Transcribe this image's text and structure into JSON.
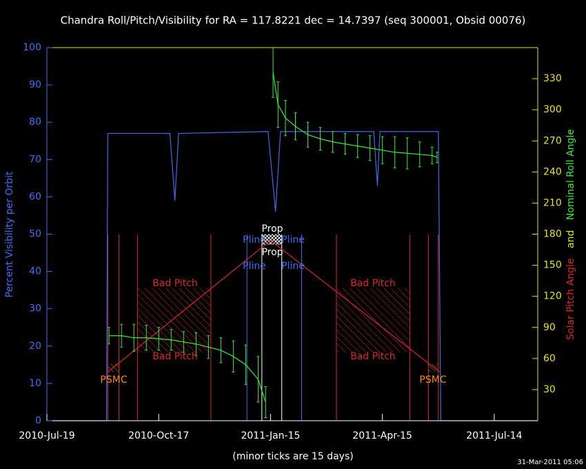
{
  "chart_data": {
    "type": "line",
    "title": "Chandra Roll/Pitch/Visibility for RA = 117.8221 dec = 14.7397 (seq 300001, Obsid 00076)",
    "xlabel": "(minor ticks are 15 days)",
    "ylabel": "Percent Visibility per Orbit",
    "y2label": [
      {
        "text": "Solar Pitch Angle",
        "color": "#e02424"
      },
      {
        "text": "and",
        "color": "#e6e600"
      },
      {
        "text": "Nominal Roll Angle",
        "color": "#33ee33"
      }
    ],
    "timestamp": "31-Mar-2011 05:06",
    "ycolor": "#3a6ff7",
    "y2color": "#e6e600",
    "xlim": [
      "2010-07-19",
      "2011-08-18"
    ],
    "xticks": [
      {
        "value": "2010-07-19",
        "label": "2010-Jul-19"
      },
      {
        "value": "2010-10-17",
        "label": "2010-Oct-17"
      },
      {
        "value": "2011-01-15",
        "label": "2011-Jan-15"
      },
      {
        "value": "2011-04-15",
        "label": "2011-Apr-15"
      },
      {
        "value": "2011-07-14",
        "label": "2011-Jul-14"
      }
    ],
    "ylim": [
      0,
      100
    ],
    "yticks": [
      0,
      10,
      20,
      30,
      40,
      50,
      60,
      70,
      80,
      90,
      100
    ],
    "y2lim": [
      0,
      360
    ],
    "y2ticks": [
      30,
      60,
      90,
      120,
      150,
      180,
      210,
      240,
      270,
      300,
      330
    ],
    "series": [
      {
        "color": "#3b6cf4",
        "x": [
          "2010-07-19",
          "2010-09-05",
          "2010-09-06",
          "2010-10-26",
          "2010-10-30",
          "2010-11-02",
          "2011-01-13",
          "2011-01-19",
          "2011-01-23",
          "2011-04-08",
          "2011-04-11",
          "2011-04-13",
          "2011-05-30",
          "2011-06-01",
          "2011-08-18"
        ],
        "values": [
          0,
          0,
          77,
          77,
          59,
          77,
          77.5,
          56,
          77.5,
          77.5,
          63,
          77.5,
          77.5,
          0,
          0
        ]
      },
      {
        "color": "#e02424",
        "axis": "y2",
        "x": [
          "2010-09-06",
          "2011-01-15",
          "2011-05-31"
        ],
        "values": [
          47,
          174,
          47
        ]
      },
      {
        "color": "#33ee33",
        "axis": "y2",
        "x": [
          "2010-09-07",
          "2010-09-17",
          "2010-09-27",
          "2010-10-07",
          "2010-10-17",
          "2010-10-27",
          "2010-11-06",
          "2010-11-16",
          "2010-11-26",
          "2010-12-06",
          "2010-12-16",
          "2010-12-26",
          "2011-01-05",
          "2011-01-11",
          "2011-01-14",
          "2011-01-17",
          "2011-01-21",
          "2011-01-27",
          "2011-02-04",
          "2011-02-14",
          "2011-02-24",
          "2011-03-06",
          "2011-03-16",
          "2011-03-26",
          "2011-04-05",
          "2011-04-15",
          "2011-04-25",
          "2011-05-05",
          "2011-05-15",
          "2011-05-25",
          "2011-05-29"
        ],
        "values": [
          82,
          82,
          80,
          80,
          79,
          78,
          76,
          74,
          71,
          68,
          62,
          54,
          40,
          18,
          null,
          336,
          305,
          292,
          284,
          276,
          272,
          269,
          267,
          265,
          263,
          261,
          259,
          258,
          257,
          256,
          254
        ],
        "errors": [
          8,
          11,
          13,
          12,
          11,
          10,
          10,
          11,
          11,
          12,
          15,
          19,
          22,
          15,
          null,
          24,
          22,
          17,
          13,
          12,
          11,
          10,
          10,
          11,
          12,
          13,
          15,
          15,
          12,
          8,
          5
        ]
      }
    ],
    "regions": [
      {
        "x": [
          "2010-09-30",
          "2010-11-28"
        ],
        "y2": [
          66,
          128
        ],
        "color": "#e02424"
      },
      {
        "x": [
          "2011-03-09",
          "2011-05-07"
        ],
        "y2": [
          66,
          128
        ],
        "color": "#e02424"
      },
      {
        "x": [
          "2010-09-06",
          "2010-09-15"
        ],
        "y2": [
          47,
          55
        ],
        "color": "#ff8800"
      },
      {
        "x": [
          "2011-05-22",
          "2011-05-30"
        ],
        "y2": [
          47,
          55
        ],
        "color": "#ff8800"
      },
      {
        "x": [
          "2011-01-08",
          "2011-01-24"
        ],
        "y2": [
          170,
          180
        ],
        "color": "#ffffff"
      }
    ],
    "events": [
      {
        "x": "2010-09-06",
        "color": "#e02424"
      },
      {
        "x": "2010-09-15",
        "color": "#e02424"
      },
      {
        "x": "2010-09-30",
        "color": "#e02424"
      },
      {
        "x": "2010-11-28",
        "color": "#e02424"
      },
      {
        "x": "2011-03-09",
        "color": "#e02424"
      },
      {
        "x": "2011-05-07",
        "color": "#e02424"
      },
      {
        "x": "2011-05-22",
        "color": "#e02424"
      },
      {
        "x": "2011-05-30",
        "color": "#e02424"
      },
      {
        "x": "2010-12-27",
        "color": "#3b6cf4"
      },
      {
        "x": "2011-02-09",
        "color": "#3b6cf4"
      },
      {
        "x": "2011-01-08",
        "color": "#ffffff"
      },
      {
        "x": "2011-01-24",
        "color": "#ffffff"
      }
    ],
    "annotations": [
      {
        "text": "Bad Pitch",
        "color": "#e02424"
      },
      {
        "text": "Bad Pitch",
        "color": "#e02424"
      },
      {
        "text": "Bad Pitch",
        "color": "#e02424"
      },
      {
        "text": "Bad Pitch",
        "color": "#e02424"
      },
      {
        "text": "PSMC",
        "color": "#ff8800"
      },
      {
        "text": "PSMC",
        "color": "#ff8800"
      },
      {
        "text": "Pline",
        "color": "#3b6cf4"
      },
      {
        "text": "Pline",
        "color": "#3b6cf4"
      },
      {
        "text": "Pline",
        "color": "#3b6cf4"
      },
      {
        "text": "Pline",
        "color": "#3b6cf4"
      },
      {
        "text": "Prop",
        "color": "#ffffff"
      },
      {
        "text": "Prop",
        "color": "#ffffff"
      }
    ]
  }
}
